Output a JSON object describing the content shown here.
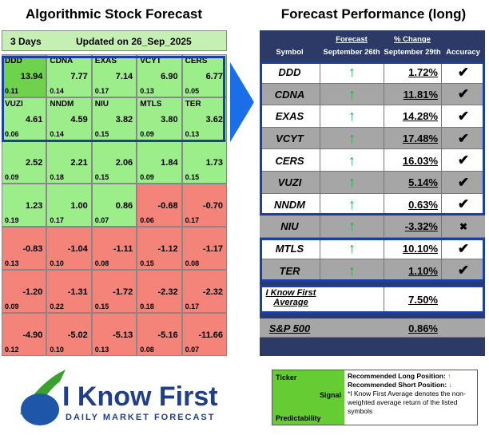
{
  "left": {
    "title": "Algorithmic Stock Forecast",
    "horizon": "3 Days",
    "updated": "Updated on 26_Sep_2025",
    "rows": [
      [
        {
          "ticker": "DDD",
          "signal": "13.94",
          "predictability": "0.11"
        },
        {
          "ticker": "CDNA",
          "signal": "7.77",
          "predictability": "0.14"
        },
        {
          "ticker": "EXAS",
          "signal": "7.14",
          "predictability": "0.17"
        },
        {
          "ticker": "VCYT",
          "signal": "6.90",
          "predictability": "0.13"
        },
        {
          "ticker": "CERS",
          "signal": "6.77",
          "predictability": "0.05"
        }
      ],
      [
        {
          "ticker": "VUZI",
          "signal": "4.61",
          "predictability": "0.06"
        },
        {
          "ticker": "NNDM",
          "signal": "4.59",
          "predictability": "0.14"
        },
        {
          "ticker": "NIU",
          "signal": "3.82",
          "predictability": "0.15"
        },
        {
          "ticker": "MTLS",
          "signal": "3.80",
          "predictability": "0.09"
        },
        {
          "ticker": "TER",
          "signal": "3.62",
          "predictability": "0.13"
        }
      ],
      [
        {
          "signal": "2.52",
          "predictability": "0.09"
        },
        {
          "signal": "2.21",
          "predictability": "0.18"
        },
        {
          "signal": "2.06",
          "predictability": "0.15"
        },
        {
          "signal": "1.84",
          "predictability": "0.09"
        },
        {
          "signal": "1.73",
          "predictability": "0.15"
        }
      ],
      [
        {
          "signal": "1.23",
          "predictability": "0.19"
        },
        {
          "signal": "1.00",
          "predictability": "0.17"
        },
        {
          "signal": "0.86",
          "predictability": "0.07"
        },
        {
          "signal": "-0.68",
          "predictability": "0.06"
        },
        {
          "signal": "-0.70",
          "predictability": "0.17"
        }
      ],
      [
        {
          "signal": "-0.83",
          "predictability": "0.13"
        },
        {
          "signal": "-1.04",
          "predictability": "0.10"
        },
        {
          "signal": "-1.11",
          "predictability": "0.08"
        },
        {
          "signal": "-1.12",
          "predictability": "0.15"
        },
        {
          "signal": "-1.17",
          "predictability": "0.08"
        }
      ],
      [
        {
          "signal": "-1.20",
          "predictability": "0.09"
        },
        {
          "signal": "-1.31",
          "predictability": "0.22"
        },
        {
          "signal": "-1.72",
          "predictability": "0.15"
        },
        {
          "signal": "-2.32",
          "predictability": "0.18"
        },
        {
          "signal": "-2.32",
          "predictability": "0.17"
        }
      ],
      [
        {
          "signal": "-4.90",
          "predictability": "0.12"
        },
        {
          "signal": "-5.02",
          "predictability": "0.10"
        },
        {
          "signal": "-5.13",
          "predictability": "0.13"
        },
        {
          "signal": "-5.16",
          "predictability": "0.08"
        },
        {
          "signal": "-11.66",
          "predictability": "0.07"
        }
      ]
    ]
  },
  "right": {
    "title": "Forecast Performance (long)",
    "headers": {
      "symbol": "Symbol",
      "forecast": "Forecast",
      "forecast_date": "September 26th",
      "change": "% Change",
      "change_date": "September 29th",
      "accuracy": "Accuracy"
    },
    "rows": [
      {
        "symbol": "DDD",
        "forecast": "↑",
        "change": "1.72%",
        "accuracy": "✔"
      },
      {
        "symbol": "CDNA",
        "forecast": "↑",
        "change": "11.81%",
        "accuracy": "✔"
      },
      {
        "symbol": "EXAS",
        "forecast": "↑",
        "change": "14.28%",
        "accuracy": "✔"
      },
      {
        "symbol": "VCYT",
        "forecast": "↑",
        "change": "17.48%",
        "accuracy": "✔"
      },
      {
        "symbol": "CERS",
        "forecast": "↑",
        "change": "16.03%",
        "accuracy": "✔"
      },
      {
        "symbol": "VUZI",
        "forecast": "↑",
        "change": "5.14%",
        "accuracy": "✔"
      },
      {
        "symbol": "NNDM",
        "forecast": "↑",
        "change": "0.63%",
        "accuracy": "✔"
      },
      {
        "symbol": "NIU",
        "forecast": "↑",
        "change": "-3.32%",
        "accuracy": "✖"
      },
      {
        "symbol": "MTLS",
        "forecast": "↑",
        "change": "10.10%",
        "accuracy": "✔"
      },
      {
        "symbol": "TER",
        "forecast": "↑",
        "change": "1.10%",
        "accuracy": "✔"
      }
    ],
    "average": {
      "label": "I Know First Average",
      "change": "7.50%"
    },
    "benchmark": {
      "label": "S&P 500",
      "change": "0.86%"
    }
  },
  "legend": {
    "ticker": "Ticker",
    "signal": "Signal",
    "predictability": "Predictability",
    "long": "Recommended Long Position:",
    "long_icon": "↑",
    "short": "Recommended Short Position:",
    "short_icon": "↓",
    "note": "*I Know First Average denotes the non-weighted average return of the listed symbols"
  },
  "logo": {
    "name": "I Know First",
    "tagline": "Daily Market Forecast"
  }
}
